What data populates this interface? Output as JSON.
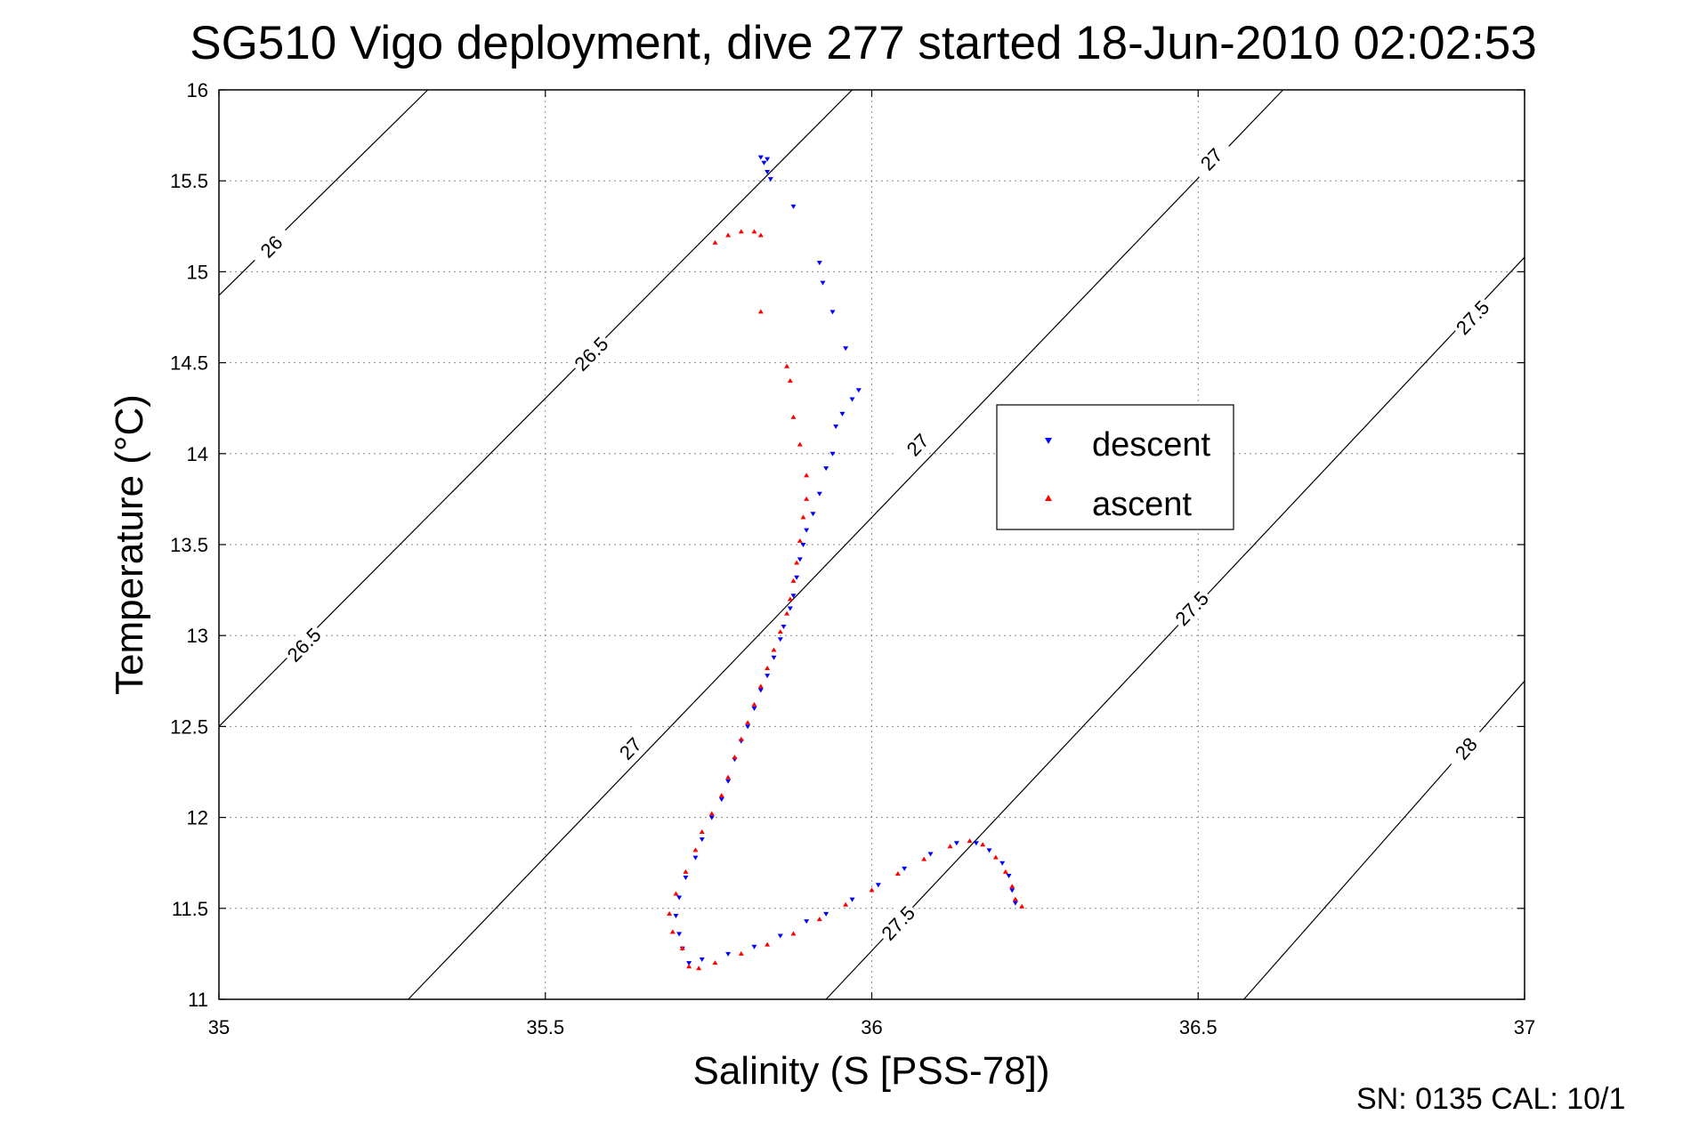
{
  "chart_data": {
    "type": "scatter",
    "title": "SG510 Vigo deployment, dive 277 started 18-Jun-2010 02:02:53",
    "xlabel": "Salinity (S [PSS-78])",
    "ylabel": "Temperature (°C)",
    "xlim": [
      35,
      37
    ],
    "ylim": [
      11,
      16
    ],
    "x_ticks": [
      "35",
      "35.5",
      "36",
      "36.5",
      "37"
    ],
    "y_ticks": [
      "11",
      "11.5",
      "12",
      "12.5",
      "13",
      "13.5",
      "14",
      "14.5",
      "15",
      "15.5",
      "16"
    ],
    "grid": true,
    "legend_position": "right",
    "footer": "SN: 0135  CAL: 10/1",
    "isopycnals": [
      {
        "label": "26",
        "s_lo": 35.0,
        "t_lo": 14.87,
        "s_hi": 35.32,
        "t_hi": 16.0,
        "labels_at": [
          [
            35.08,
            15.14
          ]
        ]
      },
      {
        "label": "26.5",
        "s_lo": 35.0,
        "t_lo": 12.5,
        "s_hi": 35.97,
        "t_hi": 16.0,
        "labels_at": [
          [
            35.13,
            12.95
          ],
          [
            35.57,
            14.55
          ]
        ]
      },
      {
        "label": "27",
        "s_lo": 35.29,
        "t_lo": 11.0,
        "s_hi": 36.63,
        "t_hi": 16.0,
        "labels_at": [
          [
            35.63,
            12.38
          ],
          [
            36.07,
            14.05
          ],
          [
            36.52,
            15.62
          ]
        ]
      },
      {
        "label": "27.5",
        "s_lo": 35.93,
        "t_lo": 11.0,
        "s_hi": 37.0,
        "t_hi": 15.08,
        "labels_at": [
          [
            36.04,
            11.42
          ],
          [
            36.49,
            13.15
          ],
          [
            36.92,
            14.75
          ]
        ]
      },
      {
        "label": "28",
        "s_lo": 36.57,
        "t_lo": 11.0,
        "s_hi": 37.0,
        "t_hi": 12.75,
        "labels_at": [
          [
            36.91,
            12.38
          ]
        ]
      }
    ],
    "series": [
      {
        "name": "descent",
        "color": "#0000ff",
        "marker": "triangle-down",
        "points": [
          [
            35.83,
            15.63
          ],
          [
            35.84,
            15.62
          ],
          [
            35.835,
            15.6
          ],
          [
            35.84,
            15.55
          ],
          [
            35.845,
            15.51
          ],
          [
            35.88,
            15.36
          ],
          [
            35.92,
            15.05
          ],
          [
            35.925,
            14.94
          ],
          [
            35.94,
            14.78
          ],
          [
            35.96,
            14.58
          ],
          [
            35.98,
            14.35
          ],
          [
            35.97,
            14.3
          ],
          [
            35.955,
            14.22
          ],
          [
            35.945,
            14.15
          ],
          [
            35.94,
            14.0
          ],
          [
            35.93,
            13.92
          ],
          [
            35.92,
            13.78
          ],
          [
            35.91,
            13.67
          ],
          [
            35.9,
            13.58
          ],
          [
            35.895,
            13.5
          ],
          [
            35.89,
            13.42
          ],
          [
            35.885,
            13.32
          ],
          [
            35.88,
            13.22
          ],
          [
            35.875,
            13.15
          ],
          [
            35.865,
            13.05
          ],
          [
            35.86,
            12.98
          ],
          [
            35.85,
            12.88
          ],
          [
            35.84,
            12.78
          ],
          [
            35.83,
            12.7
          ],
          [
            35.82,
            12.6
          ],
          [
            35.81,
            12.5
          ],
          [
            35.8,
            12.42
          ],
          [
            35.79,
            12.32
          ],
          [
            35.78,
            12.2
          ],
          [
            35.77,
            12.1
          ],
          [
            35.755,
            12.0
          ],
          [
            35.74,
            11.88
          ],
          [
            35.73,
            11.78
          ],
          [
            35.715,
            11.67
          ],
          [
            35.705,
            11.56
          ],
          [
            35.7,
            11.46
          ],
          [
            35.705,
            11.36
          ],
          [
            35.71,
            11.28
          ],
          [
            35.72,
            11.2
          ],
          [
            35.74,
            11.22
          ],
          [
            35.78,
            11.25
          ],
          [
            35.82,
            11.29
          ],
          [
            35.86,
            11.35
          ],
          [
            35.9,
            11.43
          ],
          [
            35.93,
            11.47
          ],
          [
            35.97,
            11.55
          ],
          [
            36.01,
            11.63
          ],
          [
            36.05,
            11.72
          ],
          [
            36.09,
            11.8
          ],
          [
            36.13,
            11.86
          ],
          [
            36.16,
            11.86
          ],
          [
            36.18,
            11.82
          ],
          [
            36.2,
            11.75
          ],
          [
            36.21,
            11.68
          ],
          [
            36.215,
            11.6
          ],
          [
            36.22,
            11.53
          ]
        ]
      },
      {
        "name": "ascent",
        "color": "#ff0000",
        "marker": "triangle-up",
        "points": [
          [
            35.76,
            15.16
          ],
          [
            35.78,
            15.2
          ],
          [
            35.8,
            15.22
          ],
          [
            35.82,
            15.22
          ],
          [
            35.83,
            15.2
          ],
          [
            35.83,
            14.78
          ],
          [
            35.87,
            14.48
          ],
          [
            35.875,
            14.4
          ],
          [
            35.88,
            14.2
          ],
          [
            35.89,
            14.05
          ],
          [
            35.9,
            13.88
          ],
          [
            35.9,
            13.75
          ],
          [
            35.895,
            13.65
          ],
          [
            35.89,
            13.52
          ],
          [
            35.885,
            13.4
          ],
          [
            35.88,
            13.3
          ],
          [
            35.875,
            13.2
          ],
          [
            35.87,
            13.12
          ],
          [
            35.86,
            13.02
          ],
          [
            35.85,
            12.92
          ],
          [
            35.84,
            12.82
          ],
          [
            35.83,
            12.72
          ],
          [
            35.82,
            12.62
          ],
          [
            35.81,
            12.52
          ],
          [
            35.8,
            12.43
          ],
          [
            35.79,
            12.33
          ],
          [
            35.78,
            12.22
          ],
          [
            35.77,
            12.12
          ],
          [
            35.755,
            12.02
          ],
          [
            35.74,
            11.92
          ],
          [
            35.73,
            11.82
          ],
          [
            35.715,
            11.7
          ],
          [
            35.7,
            11.58
          ],
          [
            35.69,
            11.47
          ],
          [
            35.695,
            11.37
          ],
          [
            35.71,
            11.28
          ],
          [
            35.72,
            11.18
          ],
          [
            35.735,
            11.17
          ],
          [
            35.76,
            11.2
          ],
          [
            35.8,
            11.25
          ],
          [
            35.84,
            11.3
          ],
          [
            35.88,
            11.36
          ],
          [
            35.92,
            11.44
          ],
          [
            35.96,
            11.52
          ],
          [
            36.0,
            11.6
          ],
          [
            36.04,
            11.69
          ],
          [
            36.08,
            11.77
          ],
          [
            36.12,
            11.84
          ],
          [
            36.15,
            11.87
          ],
          [
            36.17,
            11.85
          ],
          [
            36.19,
            11.78
          ],
          [
            36.205,
            11.7
          ],
          [
            36.215,
            11.62
          ],
          [
            36.22,
            11.55
          ],
          [
            36.23,
            11.51
          ]
        ]
      }
    ]
  }
}
